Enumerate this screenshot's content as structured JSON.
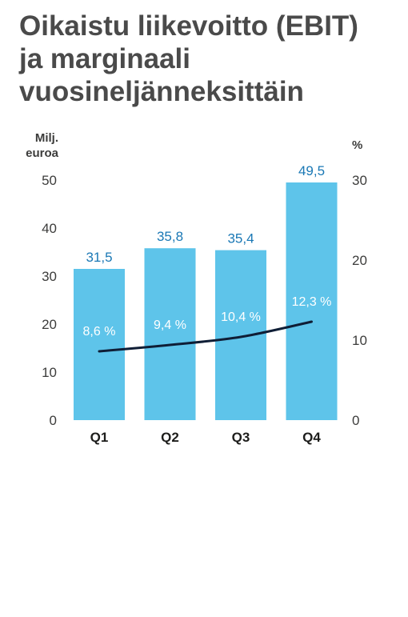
{
  "title_lines": [
    "Oikaistu liikevoitto (EBIT)",
    "ja marginaali",
    "vuosineljänneksittäin"
  ],
  "colors": {
    "bar": "#5ec4ea",
    "line": "#0f1e36",
    "value_label": "#1a78b5",
    "title": "#4a4a4a"
  },
  "chart_data": {
    "type": "bar",
    "title": "Oikaistu liikevoitto (EBIT) ja marginaali vuosineljänneksittäin",
    "categories": [
      "Q1",
      "Q2",
      "Q3",
      "Q4"
    ],
    "series": [
      {
        "type": "bar",
        "axis": "left",
        "values": [
          31.5,
          35.8,
          35.4,
          49.5
        ],
        "labels": [
          "31,5",
          "35,8",
          "35,4",
          "49,5"
        ]
      },
      {
        "type": "line",
        "axis": "right",
        "values": [
          8.6,
          9.4,
          10.4,
          12.3
        ],
        "labels": [
          "8,6 %",
          "9,4 %",
          "10,4 %",
          "12,3 %"
        ]
      }
    ],
    "y_left": {
      "label_lines": [
        "Milj.",
        "euroa"
      ],
      "ylim": [
        0,
        50
      ],
      "ticks": [
        "0",
        "10",
        "20",
        "30",
        "40",
        "50"
      ]
    },
    "y_right": {
      "label": "%",
      "ylim": [
        0,
        30
      ],
      "ticks": [
        "0",
        "10",
        "20",
        "30"
      ]
    },
    "grid": false,
    "legend": "none"
  }
}
